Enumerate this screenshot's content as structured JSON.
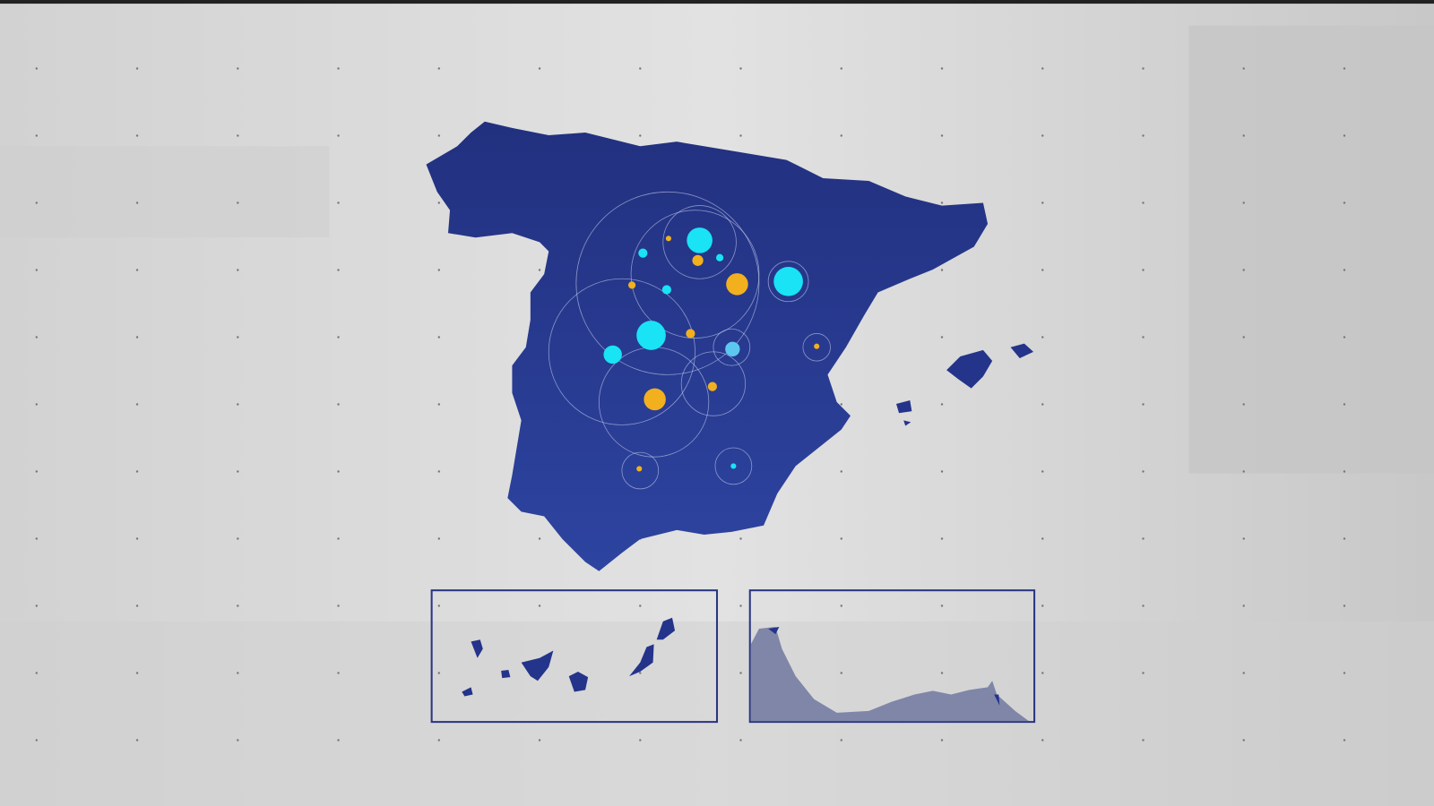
{
  "colors": {
    "background": "#dcdcdc",
    "map_fill": "#24348a",
    "map_fill_light": "#2e46a3",
    "inset_border": "#2a3580",
    "marker_cyan": "#19e3f5",
    "marker_yellow": "#f2b01e",
    "marker_lightblue": "#5cc8f0",
    "ring": "#c9d2f0",
    "ceuta_fill": "#7f86a8"
  },
  "icons": {
    "main_map": "spain-mainland-map",
    "balearic": "balearic-islands-map",
    "canary_inset": "canary-islands-inset",
    "ceuta_inset": "ceuta-melilla-inset"
  }
}
